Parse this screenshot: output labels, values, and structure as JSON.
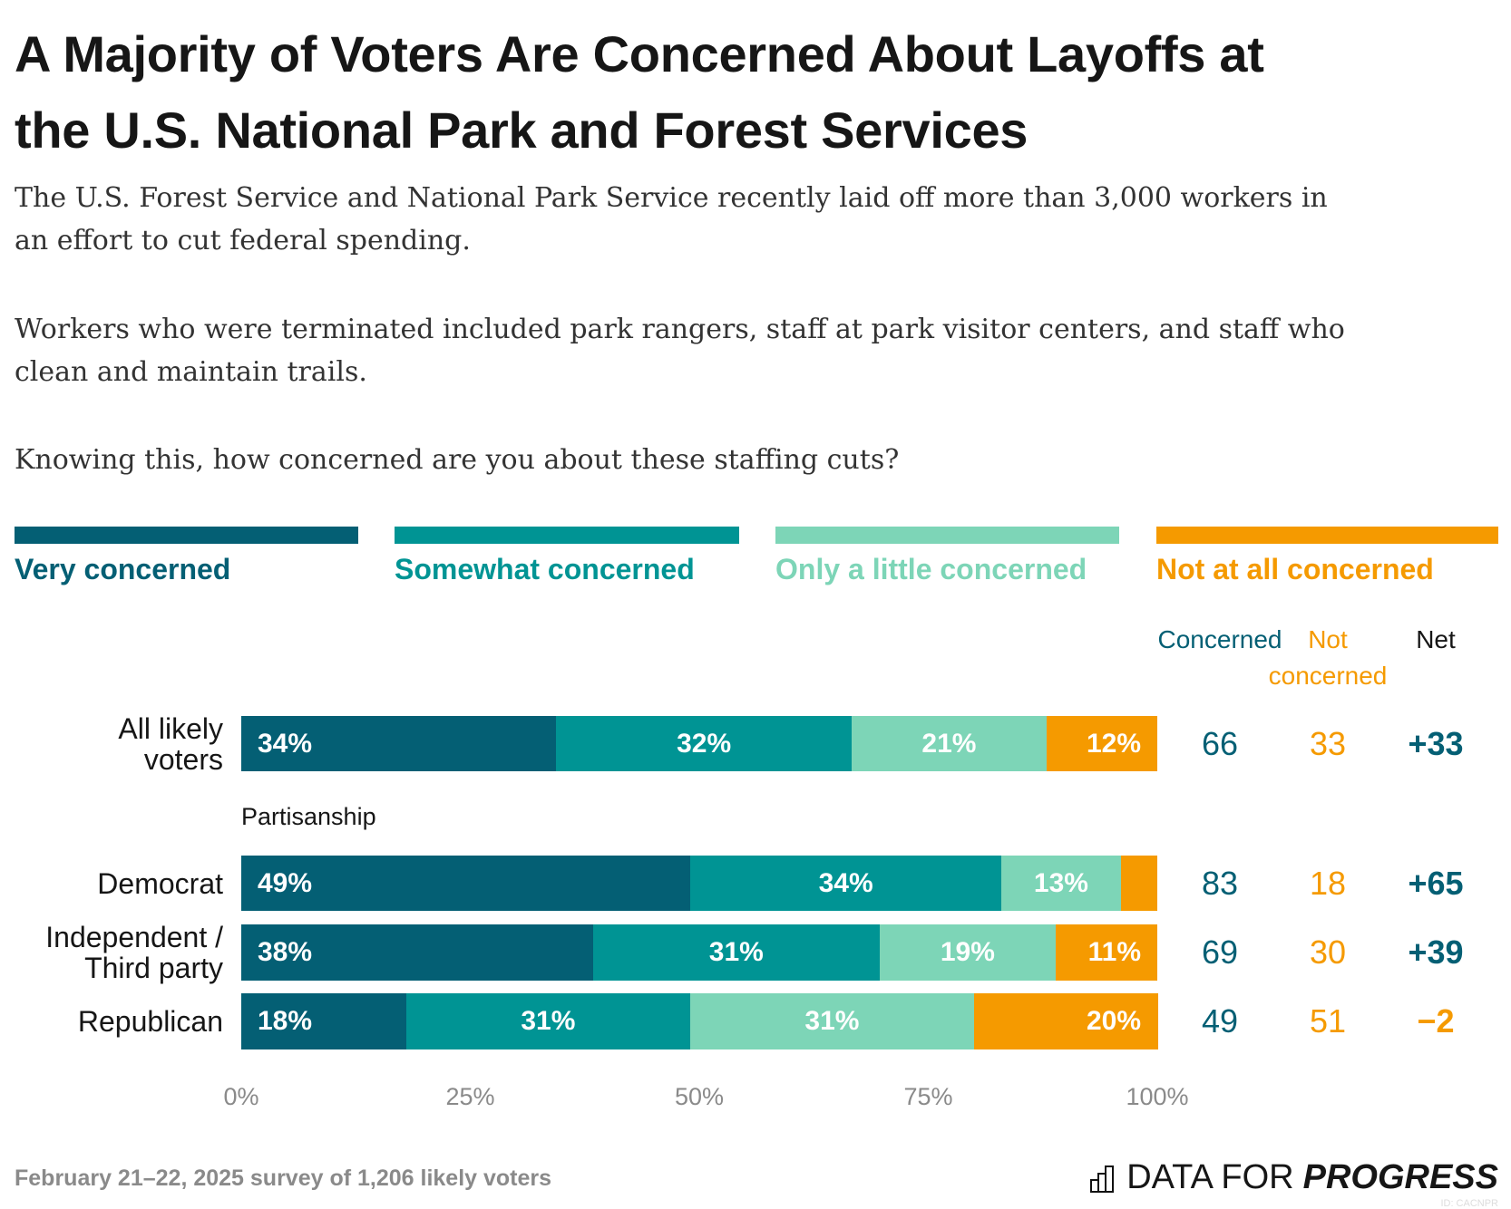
{
  "title": [
    "A Majority of Voters Are Concerned About Layoffs at",
    "the U.S. National Park and Forest Services"
  ],
  "subtitle": [
    "The U.S. Forest Service and National Park Service recently laid off more than 3,000 workers in",
    "an effort to cut federal spending.",
    "Workers who were terminated included park rangers, staff at park visitor centers, and staff who",
    "clean and maintain trails.",
    "Knowing this, how concerned are you about these staffing cuts?"
  ],
  "chart_data": {
    "type": "bar",
    "orientation": "horizontal-stacked",
    "legend_placement": "top",
    "series": [
      {
        "name": "Very concerned",
        "color": "#045f74"
      },
      {
        "name": "Somewhat concerned",
        "color": "#009494"
      },
      {
        "name": "Only a little concerned",
        "color": "#7dd5b7"
      },
      {
        "name": "Not at all concerned",
        "color": "#f59a00"
      }
    ],
    "columns": {
      "concerned": "Concerned",
      "not_concerned": [
        "Not",
        "concerned"
      ],
      "net": "Net"
    },
    "group_label": "Partisanship",
    "rows": [
      {
        "label": [
          "All likely",
          "voters"
        ],
        "values": [
          34,
          32,
          21,
          12
        ],
        "labels": [
          "34%",
          "32%",
          "21%",
          "12%"
        ],
        "concerned": "66",
        "not_concerned": "33",
        "net": "+33",
        "net_color": "#045f74"
      },
      {
        "label": [
          "Democrat"
        ],
        "values": [
          49,
          34,
          13,
          4
        ],
        "labels": [
          "49%",
          "34%",
          "13%",
          ""
        ],
        "concerned": "83",
        "not_concerned": "18",
        "net": "+65",
        "net_color": "#045f74"
      },
      {
        "label": [
          "Independent /",
          "Third party"
        ],
        "values": [
          38,
          31,
          19,
          11
        ],
        "labels": [
          "38%",
          "31%",
          "19%",
          "11%"
        ],
        "concerned": "69",
        "not_concerned": "30",
        "net": "+39",
        "net_color": "#045f74"
      },
      {
        "label": [
          "Republican"
        ],
        "values": [
          18,
          31,
          31,
          20
        ],
        "labels": [
          "18%",
          "31%",
          "31%",
          "20%"
        ],
        "concerned": "49",
        "not_concerned": "51",
        "net": "−2",
        "net_color": "#f59a00"
      }
    ],
    "xlim": [
      0,
      100
    ],
    "xticks": [
      "0%",
      "25%",
      "50%",
      "75%",
      "100%"
    ]
  },
  "footer": "February 21–22, 2025 survey of 1,206 likely voters",
  "logo": {
    "light": "DATA FOR",
    "bold": "PROGRESS",
    "id": "ID: CACNPR"
  }
}
